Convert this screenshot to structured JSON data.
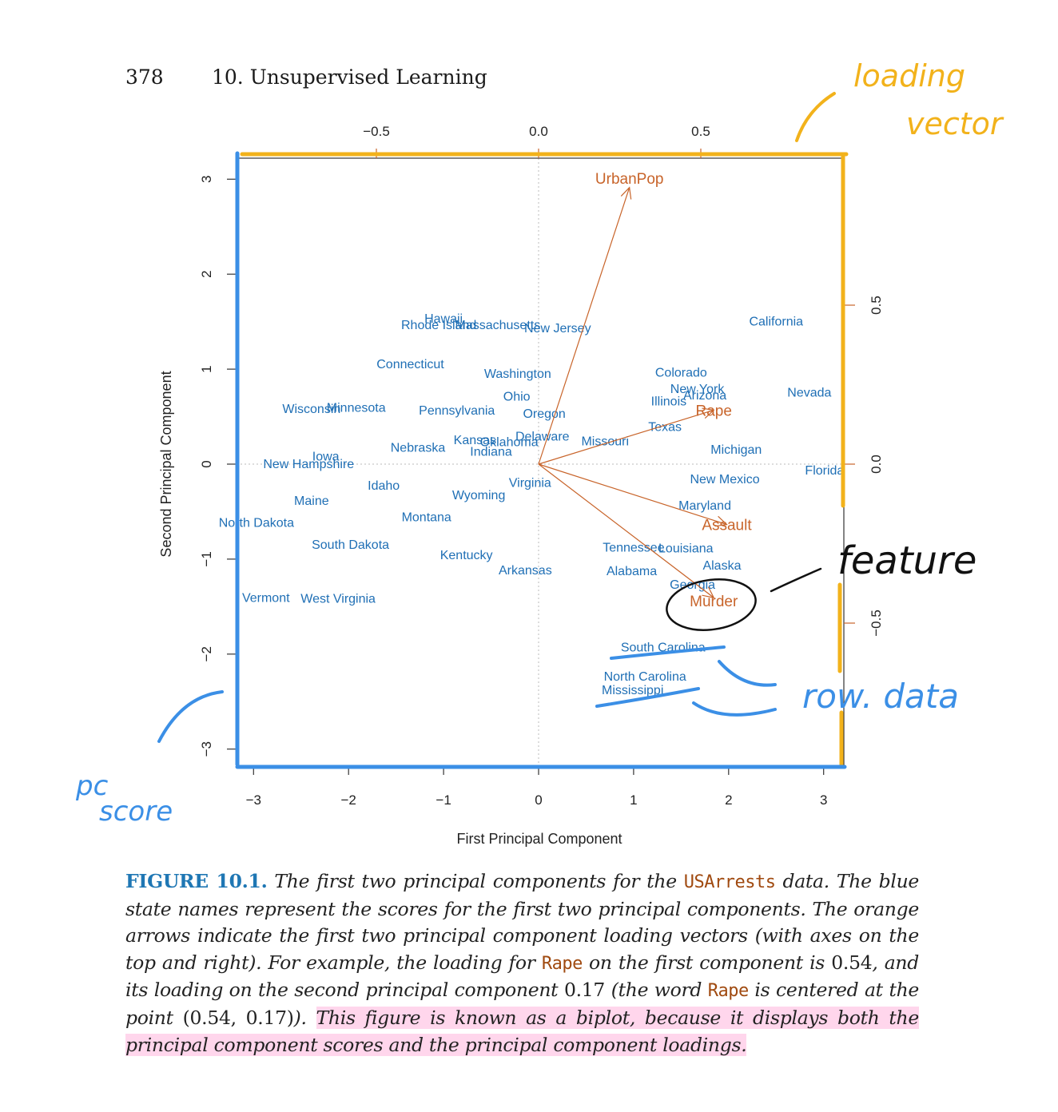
{
  "header": {
    "page_number": "378",
    "chapter": "10.  Unsupervised Learning"
  },
  "chart_data": {
    "type": "scatter",
    "xlabel": "First Principal Component",
    "ylabel": "Second Principal Component",
    "xlim": [
      -3.05,
      3.25
    ],
    "ylim": [
      -3.2,
      3.25
    ],
    "x_ticks": [
      "−3",
      "−2",
      "−1",
      "0",
      "1",
      "2",
      "3"
    ],
    "y_ticks": [
      "−3",
      "−2",
      "−1",
      "0",
      "1",
      "2",
      "3"
    ],
    "top_axis_ticks": [
      "−0.5",
      "0.0",
      "0.5"
    ],
    "right_axis_ticks": [
      "−0.5",
      "0.0",
      "0.5"
    ],
    "score_color": "#1f6fb5",
    "loading_color": "#c8642a",
    "scores": [
      {
        "name": "Hawaii",
        "x": -1.0,
        "y": 1.54
      },
      {
        "name": "Rhode Island",
        "x": -1.05,
        "y": 1.47
      },
      {
        "name": "Massachusetts",
        "x": -0.43,
        "y": 1.47
      },
      {
        "name": "New Jersey",
        "x": 0.2,
        "y": 1.44
      },
      {
        "name": "California",
        "x": 2.5,
        "y": 1.51
      },
      {
        "name": "Connecticut",
        "x": -1.35,
        "y": 1.06
      },
      {
        "name": "Washington",
        "x": -0.22,
        "y": 0.96
      },
      {
        "name": "Colorado",
        "x": 1.5,
        "y": 0.97
      },
      {
        "name": "New York",
        "x": 1.67,
        "y": 0.8
      },
      {
        "name": "Arizona",
        "x": 1.75,
        "y": 0.73
      },
      {
        "name": "Illinois",
        "x": 1.37,
        "y": 0.67
      },
      {
        "name": "Nevada",
        "x": 2.85,
        "y": 0.76
      },
      {
        "name": "Ohio",
        "x": -0.23,
        "y": 0.72
      },
      {
        "name": "Wisconsin",
        "x": -2.39,
        "y": 0.59
      },
      {
        "name": "Minnesota",
        "x": -1.92,
        "y": 0.6
      },
      {
        "name": "Pennsylvania",
        "x": -0.86,
        "y": 0.57
      },
      {
        "name": "Oregon",
        "x": 0.06,
        "y": 0.54
      },
      {
        "name": "Texas",
        "x": 1.33,
        "y": 0.4
      },
      {
        "name": "Kansas",
        "x": -0.67,
        "y": 0.26
      },
      {
        "name": "Oklahoma",
        "x": -0.31,
        "y": 0.24
      },
      {
        "name": "Delaware",
        "x": 0.04,
        "y": 0.3
      },
      {
        "name": "Missouri",
        "x": 0.7,
        "y": 0.25
      },
      {
        "name": "Nebraska",
        "x": -1.27,
        "y": 0.18
      },
      {
        "name": "Indiana",
        "x": -0.5,
        "y": 0.14
      },
      {
        "name": "Michigan",
        "x": 2.08,
        "y": 0.16
      },
      {
        "name": "Iowa",
        "x": -2.24,
        "y": 0.09
      },
      {
        "name": "New Hampshire",
        "x": -2.42,
        "y": 0.01
      },
      {
        "name": "Florida",
        "x": 3.01,
        "y": -0.06
      },
      {
        "name": "New Mexico",
        "x": 1.96,
        "y": -0.15
      },
      {
        "name": "Idaho",
        "x": -1.63,
        "y": -0.22
      },
      {
        "name": "Virginia",
        "x": -0.09,
        "y": -0.19
      },
      {
        "name": "Wyoming",
        "x": -0.63,
        "y": -0.32
      },
      {
        "name": "Maine",
        "x": -2.39,
        "y": -0.38
      },
      {
        "name": "Maryland",
        "x": 1.75,
        "y": -0.43
      },
      {
        "name": "Montana",
        "x": -1.18,
        "y": -0.55
      },
      {
        "name": "North Dakota",
        "x": -2.97,
        "y": -0.61
      },
      {
        "name": "South Dakota",
        "x": -1.98,
        "y": -0.84
      },
      {
        "name": "Tennessee",
        "x": 1.0,
        "y": -0.87
      },
      {
        "name": "Louisiana",
        "x": 1.55,
        "y": -0.88
      },
      {
        "name": "Kentucky",
        "x": -0.76,
        "y": -0.95
      },
      {
        "name": "Arkansas",
        "x": -0.14,
        "y": -1.11
      },
      {
        "name": "Alabama",
        "x": 0.98,
        "y": -1.12
      },
      {
        "name": "Alaska",
        "x": 1.93,
        "y": -1.06
      },
      {
        "name": "Georgia",
        "x": 1.62,
        "y": -1.26
      },
      {
        "name": "Vermont",
        "x": -2.87,
        "y": -1.4
      },
      {
        "name": "West Virginia",
        "x": -2.11,
        "y": -1.41
      },
      {
        "name": "South Carolina",
        "x": 1.31,
        "y": -1.92
      },
      {
        "name": "North Carolina",
        "x": 1.12,
        "y": -2.23
      },
      {
        "name": "Mississippi",
        "x": 0.99,
        "y": -2.37
      }
    ],
    "loadings": [
      {
        "name": "UrbanPop",
        "pc1": 0.28,
        "pc2": 0.87
      },
      {
        "name": "Rape",
        "pc1": 0.54,
        "pc2": 0.17
      },
      {
        "name": "Assault",
        "pc1": 0.58,
        "pc2": -0.19
      },
      {
        "name": "Murder",
        "pc1": 0.54,
        "pc2": -0.42
      }
    ]
  },
  "annotations": {
    "loading_vector": [
      "loading",
      "vector"
    ],
    "feature": "feature",
    "row_data": "row. data",
    "pc_score": [
      "pc",
      "score"
    ]
  },
  "caption": {
    "label": "FIGURE 10.1.",
    "t1": "The first two principal components for the",
    "code1": "USArrests",
    "t2": "data. The blue state names represent the scores for the first two principal components. The orange arrows indicate the first two principal component loading vectors (with axes on the top and right). For example, the loading for",
    "code2": "Rape",
    "t3": "on the first component is",
    "n1": "0.54",
    "t4": ", and its loading on the second principal component",
    "n2": "0.17",
    "t5": "(the word",
    "code3": "Rape",
    "t6": "is centered at the point",
    "n3": "(0.54, 0.17)",
    "t7": ").",
    "highlight": "This figure is known as a biplot, because it displays both the principal component scores and the principal component loadings."
  }
}
